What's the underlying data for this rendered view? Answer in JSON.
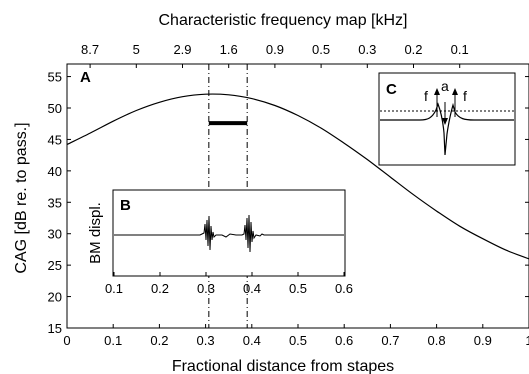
{
  "chart_data": [
    {
      "id": "main",
      "type": "line",
      "title": "",
      "top_axis_label": "Characteristic frequency map [kHz]",
      "top_ticks": [
        {
          "x": 0.05,
          "label": "8.7"
        },
        {
          "x": 0.15,
          "label": "5"
        },
        {
          "x": 0.25,
          "label": "2.9"
        },
        {
          "x": 0.35,
          "label": "1.6"
        },
        {
          "x": 0.45,
          "label": "0.9"
        },
        {
          "x": 0.55,
          "label": "0.5"
        },
        {
          "x": 0.65,
          "label": "0.3"
        },
        {
          "x": 0.75,
          "label": "0.2"
        },
        {
          "x": 0.85,
          "label": "0.1"
        }
      ],
      "xlabel": "Fractional distance from stapes",
      "ylabel": "CAG [dB re. to pass.]",
      "xlim": [
        0,
        1
      ],
      "ylim": [
        15,
        57
      ],
      "xticks": [
        0,
        0.1,
        0.2,
        0.3,
        0.4,
        0.5,
        0.6,
        0.7,
        0.8,
        0.9,
        1
      ],
      "xtick_labels": [
        "0",
        "0.1",
        "0.2",
        "0.3",
        "0.4",
        "0.5",
        "0.6",
        "0.7",
        "0.8",
        "0.9",
        "1"
      ],
      "yticks": [
        15,
        20,
        25,
        30,
        35,
        40,
        45,
        50,
        55
      ],
      "ytick_labels": [
        "15",
        "20",
        "25",
        "30",
        "35",
        "40",
        "45",
        "50",
        "55"
      ],
      "series": [
        {
          "x": [
            0,
            0.05,
            0.1,
            0.15,
            0.2,
            0.25,
            0.3,
            0.35,
            0.4,
            0.45,
            0.5,
            0.55,
            0.6,
            0.65,
            0.7,
            0.75,
            0.8,
            0.85,
            0.9,
            0.95,
            1
          ],
          "y": [
            44.2,
            46.0,
            47.9,
            49.6,
            50.9,
            51.8,
            52.2,
            52.1,
            51.5,
            50.4,
            48.8,
            46.8,
            44.4,
            41.8,
            39.0,
            36.2,
            33.6,
            31.2,
            29.2,
            27.4,
            26.0
          ]
        }
      ],
      "vlines": [
        0.307,
        0.39
      ],
      "band": {
        "x": [
          0.307,
          0.39
        ],
        "y": 47.6
      },
      "panel_label": "A"
    },
    {
      "id": "inset-B",
      "type": "line",
      "panel_label": "B",
      "ylabel": "BM displ.",
      "xlim": [
        0.1,
        0.6
      ],
      "xticks": [
        0.1,
        0.2,
        0.3,
        0.4,
        0.5,
        0.6
      ],
      "xtick_labels": [
        "0.1",
        "0.2",
        "0.3",
        "0.4",
        "0.5",
        "0.6"
      ]
    },
    {
      "id": "inset-C",
      "type": "line",
      "panel_label": "C",
      "annotations": [
        "f",
        "a",
        "f"
      ]
    }
  ]
}
